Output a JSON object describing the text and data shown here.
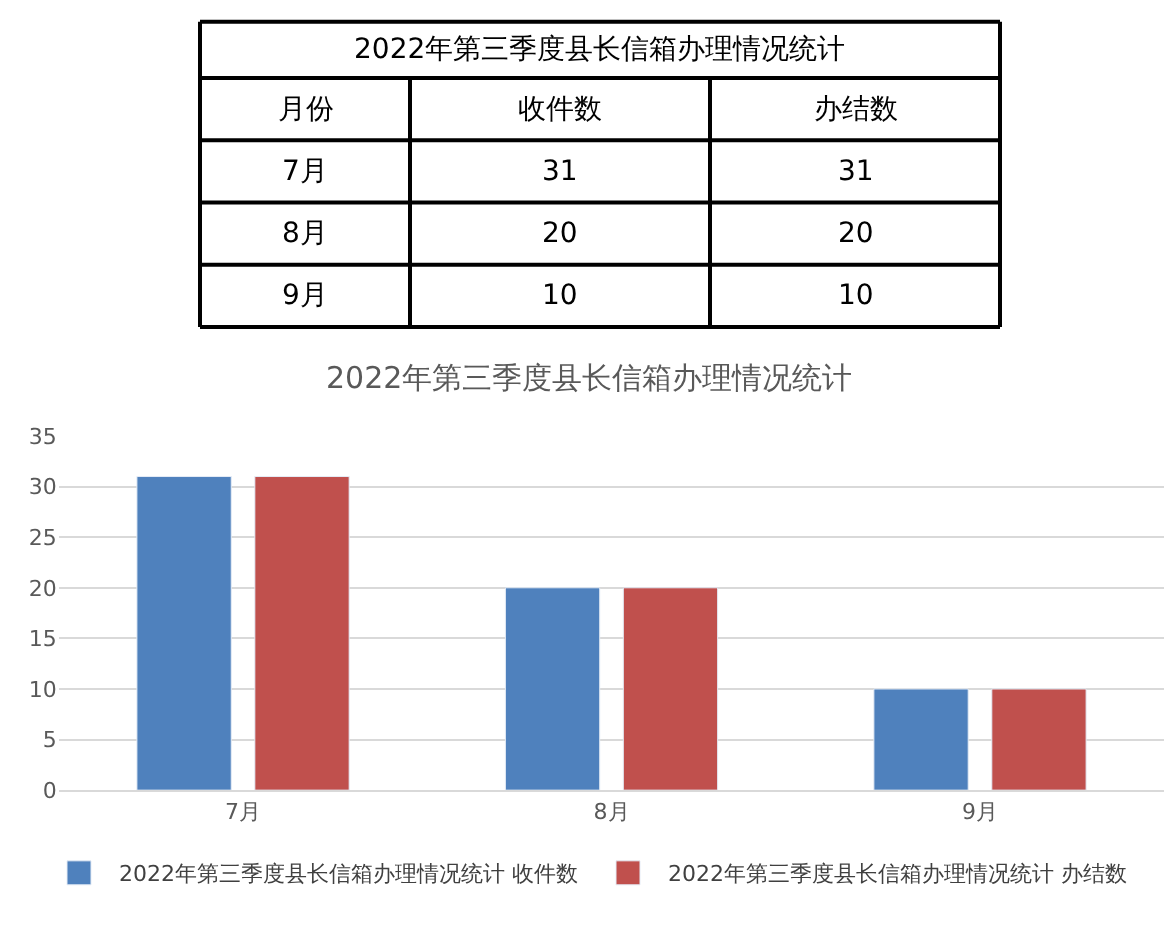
{
  "chart_data": [
    {
      "type": "other",
      "title": "2022年第三季度县长信箱办理情况统计",
      "xlabel": "月份",
      "categories": [
        "7月",
        "8月",
        "9月"
      ],
      "data_labels": true,
      "series": [
        {
          "name": "收件数",
          "values": [
            31,
            20,
            10
          ]
        },
        {
          "name": "办结数",
          "values": [
            31,
            20,
            10
          ]
        }
      ]
    },
    {
      "type": "bar",
      "title": "2022年第三季度县长信箱办理情况统计",
      "categories": [
        "7月",
        "8月",
        "9月"
      ],
      "series": [
        {
          "name": "2022年第三季度县长信箱办理情况统计 收件数",
          "color": "#4f81bd",
          "values": [
            31,
            20,
            10
          ]
        },
        {
          "name": "2022年第三季度县长信箱办理情况统计 办结数",
          "color": "#c0504d",
          "values": [
            31,
            20,
            10
          ]
        }
      ],
      "ylim": [
        0,
        35
      ],
      "yticks": [
        0,
        5,
        10,
        15,
        20,
        25,
        30,
        35
      ],
      "grid": "y",
      "legend": "bottom"
    }
  ]
}
